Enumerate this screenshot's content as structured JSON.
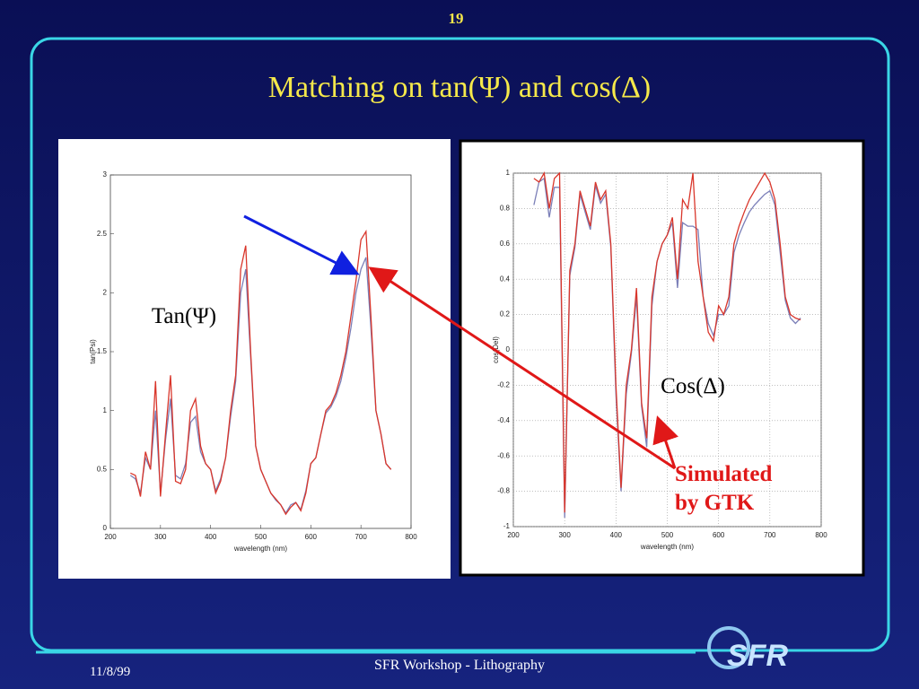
{
  "slide": {
    "page_number": "19",
    "title": "Matching on tan(Ψ) and cos(Δ)",
    "callout": [
      "Simulated",
      "by GTK"
    ],
    "footer": "SFR Workshop - Lithography",
    "date": "11/8/99",
    "logo": "SFR"
  },
  "chart_data": [
    {
      "type": "line",
      "annotation": "Tan(Ψ)",
      "xlabel": "wavelength (nm)",
      "ylabel": "tan(Psi)",
      "xlim": [
        200,
        800
      ],
      "xticks": [
        200,
        300,
        400,
        500,
        600,
        700,
        800
      ],
      "ylim": [
        0,
        3
      ],
      "yticks": [
        0,
        0.5,
        1,
        1.5,
        2,
        2.5,
        3
      ],
      "grid": false,
      "x": [
        240,
        250,
        260,
        270,
        280,
        290,
        300,
        310,
        320,
        330,
        340,
        350,
        360,
        370,
        380,
        390,
        400,
        410,
        420,
        430,
        440,
        450,
        460,
        470,
        480,
        490,
        500,
        510,
        520,
        530,
        540,
        550,
        560,
        570,
        580,
        590,
        600,
        610,
        620,
        630,
        640,
        650,
        660,
        670,
        680,
        690,
        700,
        710,
        720,
        730,
        740,
        750,
        760
      ],
      "series": [
        {
          "color": "#7b7fb8",
          "values": [
            0.45,
            0.42,
            0.3,
            0.6,
            0.5,
            1.0,
            0.3,
            0.75,
            1.1,
            0.45,
            0.42,
            0.55,
            0.9,
            0.95,
            0.65,
            0.55,
            0.5,
            0.32,
            0.42,
            0.6,
            0.95,
            1.25,
            2.0,
            2.2,
            1.45,
            0.7,
            0.5,
            0.4,
            0.3,
            0.24,
            0.2,
            0.13,
            0.2,
            0.22,
            0.16,
            0.32,
            0.55,
            0.6,
            0.8,
            0.98,
            1.03,
            1.12,
            1.25,
            1.45,
            1.7,
            2.0,
            2.2,
            2.3,
            1.7,
            1.0,
            0.8,
            0.55,
            0.5
          ]
        },
        {
          "color": "#d9362b",
          "values": [
            0.47,
            0.45,
            0.27,
            0.65,
            0.5,
            1.25,
            0.27,
            0.8,
            1.3,
            0.4,
            0.38,
            0.5,
            1.0,
            1.1,
            0.7,
            0.55,
            0.5,
            0.3,
            0.4,
            0.6,
            1.0,
            1.3,
            2.2,
            2.4,
            1.5,
            0.7,
            0.5,
            0.4,
            0.3,
            0.25,
            0.2,
            0.12,
            0.18,
            0.22,
            0.15,
            0.3,
            0.55,
            0.6,
            0.8,
            1.0,
            1.05,
            1.15,
            1.3,
            1.5,
            1.8,
            2.1,
            2.45,
            2.52,
            1.8,
            1.0,
            0.8,
            0.55,
            0.5
          ]
        }
      ]
    },
    {
      "type": "line",
      "annotation": "Cos(Δ)",
      "xlabel": "wavelength (nm)",
      "ylabel": "cos(Del)",
      "xlim": [
        200,
        800
      ],
      "xticks": [
        200,
        300,
        400,
        500,
        600,
        700,
        800
      ],
      "ylim": [
        -1,
        1
      ],
      "yticks": [
        -1,
        -0.8,
        -0.6,
        -0.4,
        -0.2,
        0,
        0.2,
        0.4,
        0.6,
        0.8,
        1
      ],
      "grid": true,
      "x": [
        240,
        250,
        260,
        270,
        280,
        290,
        300,
        310,
        320,
        330,
        340,
        350,
        360,
        370,
        380,
        390,
        400,
        410,
        420,
        430,
        440,
        450,
        460,
        470,
        480,
        490,
        500,
        510,
        520,
        530,
        540,
        550,
        560,
        570,
        580,
        590,
        600,
        610,
        620,
        630,
        640,
        650,
        660,
        670,
        680,
        690,
        700,
        710,
        720,
        730,
        740,
        750,
        760
      ],
      "series": [
        {
          "color": "#7b7fb8",
          "values": [
            0.82,
            0.95,
            0.97,
            0.75,
            0.92,
            0.92,
            -0.95,
            0.42,
            0.58,
            0.88,
            0.78,
            0.68,
            0.93,
            0.83,
            0.88,
            0.58,
            -0.25,
            -0.8,
            -0.25,
            -0.02,
            0.3,
            -0.32,
            -0.55,
            0.25,
            0.5,
            0.6,
            0.65,
            0.72,
            0.35,
            0.72,
            0.7,
            0.7,
            0.68,
            0.3,
            0.15,
            0.08,
            0.2,
            0.2,
            0.25,
            0.55,
            0.65,
            0.72,
            0.78,
            0.82,
            0.85,
            0.88,
            0.9,
            0.82,
            0.55,
            0.28,
            0.18,
            0.15,
            0.18
          ]
        },
        {
          "color": "#d9362b",
          "values": [
            0.97,
            0.95,
            1.0,
            0.8,
            0.97,
            1.0,
            -0.92,
            0.45,
            0.6,
            0.9,
            0.8,
            0.7,
            0.95,
            0.85,
            0.9,
            0.6,
            -0.2,
            -0.78,
            -0.2,
            0.0,
            0.35,
            -0.3,
            -0.5,
            0.3,
            0.5,
            0.6,
            0.65,
            0.75,
            0.4,
            0.85,
            0.8,
            1.0,
            0.5,
            0.3,
            0.1,
            0.05,
            0.25,
            0.2,
            0.3,
            0.6,
            0.7,
            0.78,
            0.85,
            0.9,
            0.95,
            1.0,
            0.95,
            0.85,
            0.6,
            0.3,
            0.2,
            0.18,
            0.17
          ]
        }
      ]
    }
  ]
}
